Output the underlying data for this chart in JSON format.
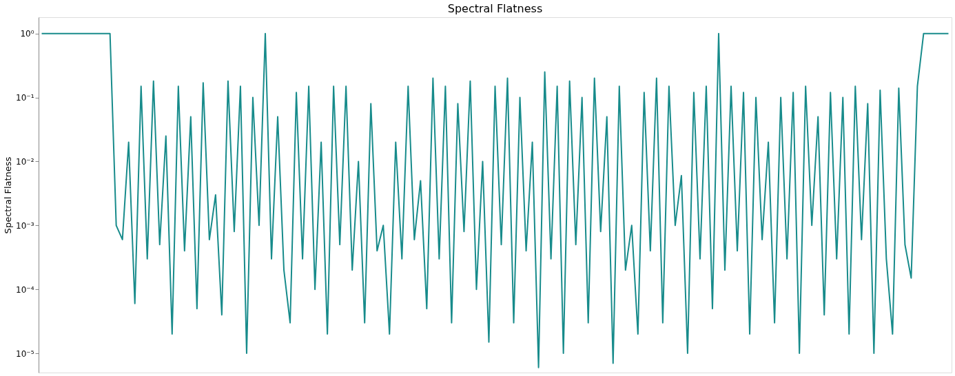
{
  "chart_data": {
    "type": "line",
    "title": "Spectral Flatness",
    "ylabel": "Spectral Flatness",
    "log": true,
    "tick_labels": "y",
    "grid": false,
    "color": "#178b8b",
    "ylim": [
      5e-06,
      1.8
    ],
    "yticks": [
      {
        "value": 1,
        "label": "10⁰"
      },
      {
        "value": 0.1,
        "label": "10⁻¹"
      },
      {
        "value": 0.01,
        "label": "10⁻²"
      },
      {
        "value": 0.001,
        "label": "10⁻³"
      },
      {
        "value": 0.0001,
        "label": "10⁻⁴"
      },
      {
        "value": 1e-05,
        "label": "10⁻⁵"
      }
    ],
    "categories": [
      null,
      null,
      null,
      null,
      null,
      null,
      null,
      null,
      null,
      null,
      null,
      null,
      null,
      null,
      null,
      null,
      null,
      null,
      null,
      null,
      null,
      null,
      null,
      null,
      null,
      null,
      null,
      null,
      null,
      null,
      null,
      null,
      null,
      null,
      null,
      null,
      null,
      null,
      null,
      null,
      null,
      null,
      null,
      null,
      null,
      null,
      null,
      null,
      null,
      null,
      null,
      null,
      null,
      null,
      null,
      null,
      null,
      null,
      null,
      null,
      null,
      null,
      null,
      null,
      null,
      null,
      null,
      null,
      null,
      null,
      null,
      null,
      null,
      null,
      null,
      null,
      null,
      null,
      null,
      null,
      null,
      null,
      null,
      null,
      null,
      null,
      null,
      null,
      null,
      null,
      null,
      null,
      null,
      null,
      null,
      null,
      null,
      null,
      null,
      null,
      null,
      null,
      null,
      null,
      null,
      null,
      null,
      null,
      null,
      null,
      null,
      null,
      null,
      null,
      null,
      null,
      null,
      null,
      null,
      null,
      null,
      null,
      null,
      null,
      null,
      null,
      null,
      null,
      null,
      null,
      null,
      null,
      null,
      null,
      null,
      null,
      null,
      null,
      null,
      null,
      null,
      null,
      null,
      null,
      null,
      null,
      null
    ],
    "values": [
      1,
      1,
      1,
      1,
      1,
      1,
      1,
      1,
      1,
      1,
      1,
      1,
      0.001,
      0.0006,
      0.02,
      6e-05,
      0.15,
      0.0003,
      0.18,
      0.0005,
      0.025,
      2e-05,
      0.15,
      0.0004,
      0.05,
      5e-05,
      0.17,
      0.0006,
      0.003,
      4e-05,
      0.18,
      0.0008,
      0.15,
      1e-05,
      0.1,
      0.001,
      1,
      0.0003,
      0.05,
      0.0002,
      3e-05,
      0.12,
      0.0003,
      0.15,
      0.0001,
      0.02,
      2e-05,
      0.15,
      0.0005,
      0.15,
      0.0002,
      0.01,
      3e-05,
      0.08,
      0.0004,
      0.001,
      2e-05,
      0.02,
      0.0003,
      0.15,
      0.0006,
      0.005,
      5e-05,
      0.2,
      0.0003,
      0.15,
      3e-05,
      0.08,
      0.0008,
      0.18,
      0.0001,
      0.01,
      1.5e-05,
      0.15,
      0.0005,
      0.2,
      3e-05,
      0.1,
      0.0004,
      0.02,
      6e-06,
      0.25,
      0.0003,
      0.15,
      1e-05,
      0.18,
      0.0005,
      0.1,
      3e-05,
      0.2,
      0.0008,
      0.05,
      7e-06,
      0.15,
      0.0002,
      0.001,
      2e-05,
      0.12,
      0.0004,
      0.2,
      3e-05,
      0.15,
      0.001,
      0.006,
      1e-05,
      0.12,
      0.0003,
      0.15,
      5e-05,
      1,
      0.0002,
      0.15,
      0.0004,
      0.12,
      2e-05,
      0.1,
      0.0006,
      0.02,
      3e-05,
      0.1,
      0.0003,
      0.12,
      1e-05,
      0.15,
      0.001,
      0.05,
      4e-05,
      0.12,
      0.0003,
      0.1,
      2e-05,
      0.15,
      0.0006,
      0.08,
      1e-05,
      0.13,
      0.0003,
      2e-05,
      0.14,
      0.0005,
      0.00015,
      0.15,
      1,
      1,
      1,
      1,
      1
    ]
  }
}
